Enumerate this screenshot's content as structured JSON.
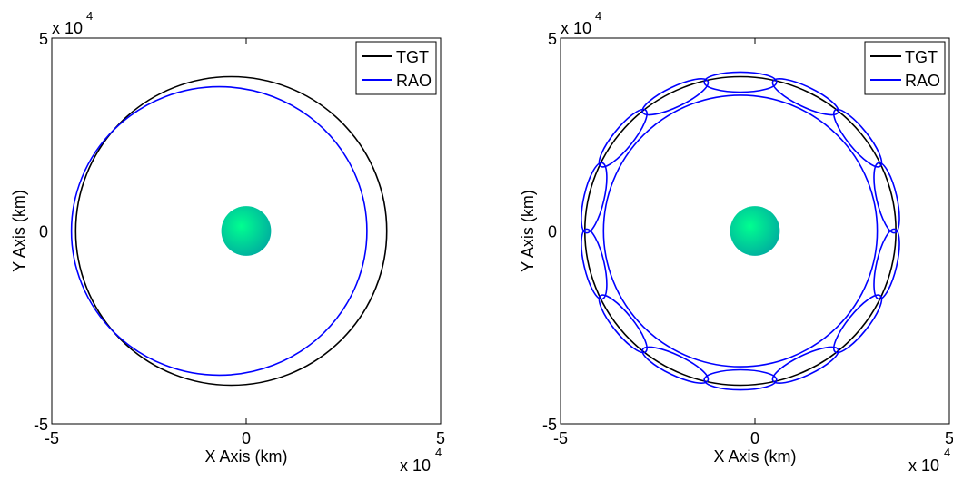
{
  "chart_data": [
    {
      "type": "orbit",
      "x_label": "X Axis (km)",
      "y_label": "Y Axis (km)",
      "x_exponent": {
        "base": "x 10",
        "power": "4"
      },
      "y_exponent": {
        "base": "x 10",
        "power": "4"
      },
      "xlim": [
        -5,
        5
      ],
      "ylim": [
        -5,
        5
      ],
      "xticks": [
        -5,
        0,
        5
      ],
      "yticks": [
        -5,
        0,
        5
      ],
      "legend": "upper right",
      "body": {
        "cx": 0,
        "cy": 0,
        "r": 0.64,
        "color": "#00e8a0"
      },
      "series": [
        {
          "name": "TGT",
          "color": "#000000",
          "ellipses": [
            {
              "cx": -0.385,
              "cy": 0,
              "rx": 4.0,
              "ry": 4.0,
              "angle": 0
            }
          ]
        },
        {
          "name": "RAO",
          "color": "#0000ff",
          "ellipses": [
            {
              "cx": -0.695,
              "cy": 0,
              "rx": 3.8,
              "ry": 3.74,
              "angle": 0
            }
          ]
        }
      ]
    },
    {
      "type": "orbit",
      "x_label": "X Axis (km)",
      "y_label": "Y Axis (km)",
      "x_exponent": {
        "base": "x 10",
        "power": "4"
      },
      "y_exponent": {
        "base": "x 10",
        "power": "4"
      },
      "xlim": [
        -5,
        5
      ],
      "ylim": [
        -5,
        5
      ],
      "xticks": [
        -5,
        0,
        5
      ],
      "yticks": [
        -5,
        0,
        5
      ],
      "legend": "upper right",
      "body": {
        "cx": 0,
        "cy": 0,
        "r": 0.64,
        "color": "#00e8a0"
      },
      "series": [
        {
          "name": "TGT",
          "color": "#000000",
          "ellipses": [
            {
              "cx": -0.375,
              "cy": 0,
              "rx": 4.0,
              "ry": 4.0,
              "angle": 0
            }
          ]
        },
        {
          "name": "RAO",
          "color": "#0000ff",
          "ellipses": [
            {
              "cx": -0.375,
              "cy": 0,
              "rx": 3.52,
              "ry": 3.52,
              "angle": 0
            },
            {
              "cx": -0.375,
              "cy": 3.86,
              "rx": 0.93,
              "ry": 0.26,
              "angle": 0
            },
            {
              "cx": 1.3,
              "cy": 3.478,
              "rx": 0.93,
              "ry": 0.26,
              "angle": -25.71
            },
            {
              "cx": 2.643,
              "cy": 2.407,
              "rx": 0.93,
              "ry": 0.26,
              "angle": -51.43
            },
            {
              "cx": 3.388,
              "cy": 0.859,
              "rx": 0.93,
              "ry": 0.26,
              "angle": -77.14
            },
            {
              "cx": 3.388,
              "cy": -0.859,
              "rx": 0.93,
              "ry": 0.26,
              "angle": 77.14
            },
            {
              "cx": 2.643,
              "cy": -2.407,
              "rx": 0.93,
              "ry": 0.26,
              "angle": 51.43
            },
            {
              "cx": 1.3,
              "cy": -3.478,
              "rx": 0.93,
              "ry": 0.26,
              "angle": 25.71
            },
            {
              "cx": -0.375,
              "cy": -3.86,
              "rx": 0.93,
              "ry": 0.26,
              "angle": 0
            },
            {
              "cx": -2.05,
              "cy": -3.478,
              "rx": 0.93,
              "ry": 0.26,
              "angle": -25.71
            },
            {
              "cx": -3.393,
              "cy": -2.407,
              "rx": 0.93,
              "ry": 0.26,
              "angle": -51.43
            },
            {
              "cx": -4.138,
              "cy": -0.859,
              "rx": 0.93,
              "ry": 0.26,
              "angle": -77.14
            },
            {
              "cx": -4.138,
              "cy": 0.859,
              "rx": 0.93,
              "ry": 0.26,
              "angle": 77.14
            },
            {
              "cx": -3.393,
              "cy": 2.407,
              "rx": 0.93,
              "ry": 0.26,
              "angle": 51.43
            },
            {
              "cx": -2.05,
              "cy": 3.478,
              "rx": 0.93,
              "ry": 0.26,
              "angle": 25.71
            }
          ]
        }
      ]
    }
  ]
}
